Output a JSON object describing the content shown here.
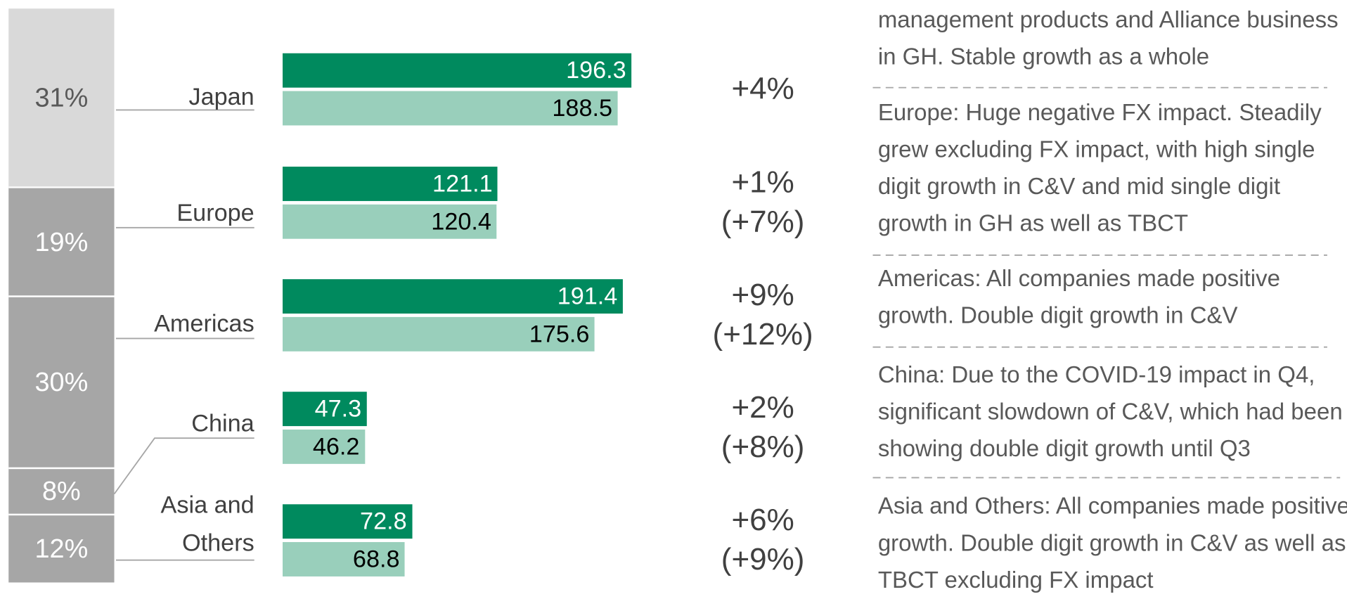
{
  "chart_data": {
    "type": "bar",
    "orientation": "horizontal",
    "categories": [
      "Japan",
      "Europe",
      "Americas",
      "China",
      "Asia and Others"
    ],
    "series": [
      {
        "color": "#008a5e",
        "values": [
          196.3,
          121.1,
          191.4,
          47.3,
          72.8
        ]
      },
      {
        "color": "#99cfbb",
        "values": [
          188.5,
          120.4,
          175.6,
          46.2,
          68.8
        ]
      }
    ],
    "shares": {
      "values": [
        31,
        19,
        30,
        8,
        12
      ],
      "value_labels": [
        "31%",
        "19%",
        "30%",
        "8%",
        "12%"
      ],
      "colors": [
        "#d9d9d9",
        "#a6a6a6",
        "#a6a6a6",
        "#a6a6a6",
        "#a6a6a6"
      ]
    },
    "growth": [
      "+4%",
      "+1%",
      "+9%",
      "+2%",
      "+6%"
    ],
    "growth_excluding_fx": [
      null,
      "(+7%)",
      "(+12%)",
      "(+8%)",
      "(+9%)"
    ],
    "notes": [
      "management products and Alliance business in GH. Stable growth as a whole",
      "Europe: Huge negative FX impact. Steadily grew excluding FX impact, with high single digit growth in C&V and mid single digit growth in GH as well as TBCT",
      "Americas: All companies made positive growth. Double digit growth in C&V",
      "China: Due to the COVID-19 impact in Q4, significant slowdown of C&V, which had been showing double digit growth until Q3",
      "Asia and Others: All companies made positive growth. Double digit growth in C&V as well as TBCT excluding FX impact"
    ]
  }
}
